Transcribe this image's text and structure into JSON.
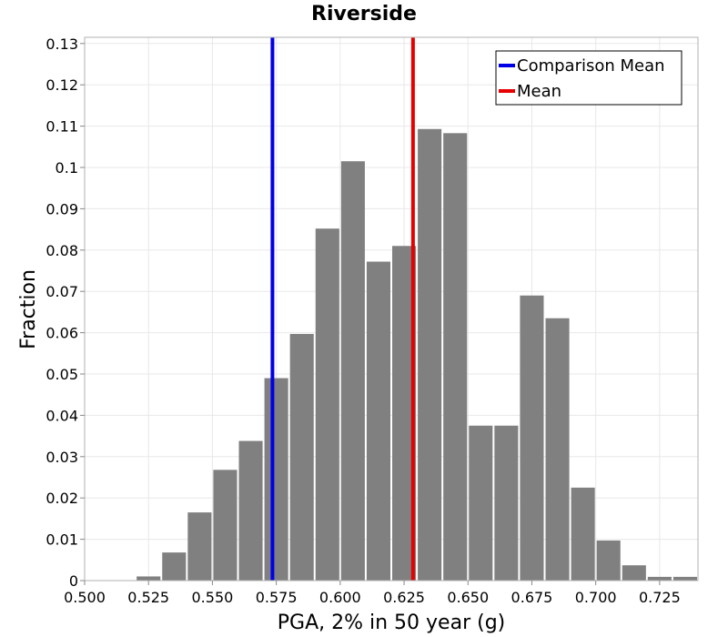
{
  "chart_data": {
    "type": "bar",
    "title": "Riverside",
    "xlabel": "PGA, 2% in 50 year (g)",
    "ylabel": "Fraction",
    "xlim": [
      0.5,
      0.74
    ],
    "ylim": [
      0,
      0.1315
    ],
    "x_ticks": [
      "0.500",
      "0.525",
      "0.550",
      "0.575",
      "0.600",
      "0.625",
      "0.650",
      "0.675",
      "0.700",
      "0.725"
    ],
    "y_ticks": [
      "0",
      "0.01",
      "0.02",
      "0.03",
      "0.04",
      "0.05",
      "0.06",
      "0.07",
      "0.08",
      "0.09",
      "0.1",
      "0.11",
      "0.12",
      "0.13"
    ],
    "bin_width": 0.01,
    "bin_starts": [
      0.52,
      0.53,
      0.54,
      0.55,
      0.56,
      0.57,
      0.58,
      0.59,
      0.6,
      0.61,
      0.62,
      0.63,
      0.64,
      0.65,
      0.66,
      0.67,
      0.68,
      0.69,
      0.7,
      0.71,
      0.72,
      0.73
    ],
    "values": [
      0.001,
      0.0068,
      0.0165,
      0.0268,
      0.0338,
      0.049,
      0.0597,
      0.0852,
      0.1015,
      0.0772,
      0.081,
      0.1093,
      0.1083,
      0.0375,
      0.0375,
      0.069,
      0.0635,
      0.0225,
      0.0097,
      0.0037,
      0.0009,
      0.0009
    ],
    "bar_color": "#808080",
    "lines": [
      {
        "name": "Comparison Mean",
        "x": 0.5735,
        "color": "#0000e6"
      },
      {
        "name": "Mean",
        "x": 0.6285,
        "color": "#e60000"
      }
    ],
    "grid": true,
    "legend_position": "top-right"
  }
}
